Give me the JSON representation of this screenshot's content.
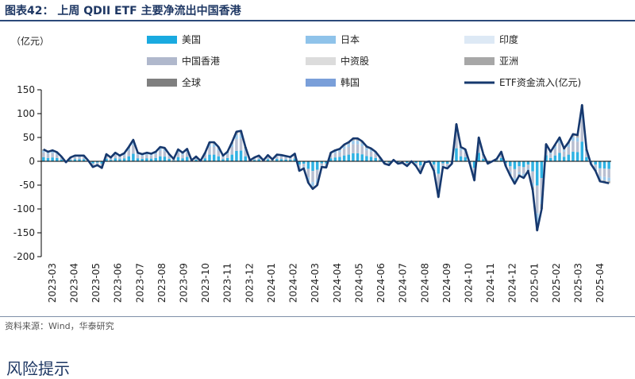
{
  "header": {
    "title": "图表42：  上周 QDII ETF 主要净流出中国香港"
  },
  "footer": {
    "source": "资料来源：Wind，华泰研究",
    "risk_heading": "风险提示"
  },
  "chart_data": {
    "type": "bar",
    "unit_label": "（亿元）",
    "ylim": [
      -200,
      150
    ],
    "yticks": [
      -200,
      -150,
      -100,
      -50,
      0,
      50,
      100,
      150
    ],
    "x_tick_labels": [
      "2023-03",
      "2023-04",
      "2023-05",
      "2023-06",
      "2023-07",
      "2023-08",
      "2023-09",
      "2023-10",
      "2023-11",
      "2023-12",
      "2024-01",
      "2024-02",
      "2024-03",
      "2024-04",
      "2024-05",
      "2024-06",
      "2024-07",
      "2024-08",
      "2024-09",
      "2024-10",
      "2024-11",
      "2024-12",
      "2025-01",
      "2025-02",
      "2025-03",
      "2025-04"
    ],
    "legend": [
      {
        "label": "美国",
        "color": "#1aaae0",
        "kind": "bar"
      },
      {
        "label": "日本",
        "color": "#8fc3ea",
        "kind": "bar"
      },
      {
        "label": "印度",
        "color": "#dde9f5",
        "kind": "bar"
      },
      {
        "label": "中国香港",
        "color": "#b0b8cc",
        "kind": "bar"
      },
      {
        "label": "中资股",
        "color": "#dcdcdc",
        "kind": "bar"
      },
      {
        "label": "亚洲",
        "color": "#a7a7a7",
        "kind": "bar"
      },
      {
        "label": "全球",
        "color": "#7f7f7f",
        "kind": "bar"
      },
      {
        "label": "韩国",
        "color": "#7a9fd9",
        "kind": "bar"
      },
      {
        "label": "ETF资金流入(亿元)",
        "color": "#16386e",
        "kind": "line"
      }
    ],
    "series": [
      {
        "name": "ETF资金流入(亿元)",
        "color": "#16386e",
        "values": [
          25,
          20,
          23,
          19,
          10,
          -2,
          8,
          12,
          12,
          12,
          1,
          -12,
          -8,
          -14,
          15,
          8,
          18,
          12,
          17,
          30,
          45,
          18,
          15,
          18,
          16,
          20,
          30,
          28,
          15,
          5,
          25,
          18,
          26,
          2,
          10,
          1,
          18,
          40,
          40,
          30,
          12,
          20,
          40,
          62,
          64,
          30,
          2,
          8,
          12,
          2,
          13,
          4,
          14,
          13,
          11,
          9,
          16,
          -20,
          -15,
          -45,
          -58,
          -50,
          -12,
          -13,
          18,
          23,
          26,
          35,
          40,
          48,
          48,
          42,
          31,
          27,
          20,
          8,
          -5,
          -8,
          3,
          -5,
          -3,
          -10,
          0,
          -10,
          -25,
          -2,
          0,
          -20,
          -75,
          -12,
          -15,
          -5,
          78,
          30,
          25,
          -5,
          -40,
          50,
          15,
          -5,
          0,
          5,
          20,
          -10,
          -30,
          -47,
          -30,
          -35,
          -20,
          -60,
          -145,
          -100,
          36,
          20,
          35,
          50,
          27,
          40,
          57,
          55,
          118,
          25,
          -6,
          -20,
          -42,
          -44,
          -46
        ]
      }
    ]
  }
}
